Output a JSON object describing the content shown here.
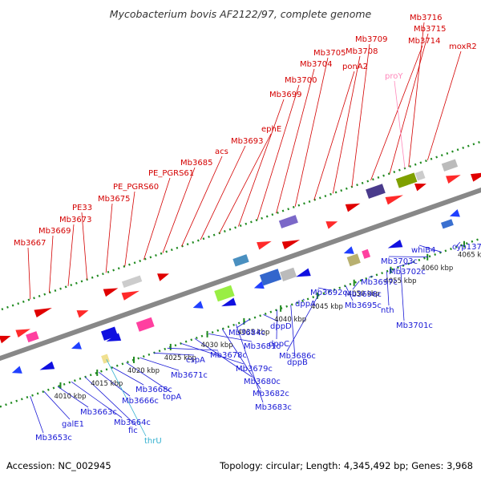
{
  "title": "Mycobacterium bovis AF2122/97, complete genome",
  "accession": "Accession: NC_002945",
  "summary": "Topology: circular; Length: 4,345,492 bp; Genes: 3,968",
  "colors": {
    "forward_label": "#d40000",
    "reverse_label": "#1a1ad6",
    "rna_label": "#33b0d0",
    "pseudo_label": "#ff88bb",
    "tick": "#1f8a1f",
    "backbone": "#888888"
  },
  "kbp_ticks": [
    "4010 kbp",
    "4015 kbp",
    "4020 kbp",
    "4025 kbp",
    "4030 kbp",
    "4035 kbp",
    "4040 kbp",
    "4045 kbp",
    "4050 kbp",
    "4055 kbp",
    "4060 kbp",
    "4065 kbp"
  ],
  "forward_labels": [
    "Mb3667",
    "Mb3669",
    "Mb3673",
    "PE33",
    "Mb3675",
    "PE_PGRS60",
    "PE_PGRS61",
    "Mb3685",
    "acs",
    "Mb3693",
    "ephE",
    "Mb3699",
    "Mb3700",
    "Mb3704",
    "Mb3705",
    "ponA2",
    "Mb3708",
    "Mb3709",
    "Mb3714",
    "Mb3715",
    "Mb3716",
    "moxR2"
  ],
  "pseudo_labels": [
    "proY"
  ],
  "reverse_labels": [
    "Mb3653c",
    "galE1",
    "Mb3663c",
    "Mb3664c",
    "fic",
    "Mb3666c",
    "Mb3668c",
    "topA",
    "Mb3671c",
    "cspA",
    "Mb3678c",
    "Mb3679c",
    "Mb3680c",
    "Mb3681c",
    "Mb3682c",
    "Mb3683c",
    "Mb3684c",
    "dppD",
    "dppC",
    "dppB",
    "dppA",
    "Mb3686c",
    "Mb3692c",
    "Mb3695c",
    "Mb3696c",
    "Mb3697c",
    "nth",
    "Mb3701c",
    "Mb3702c",
    "Mb3703c",
    "whiB4",
    "cyp137"
  ],
  "rna_labels": [
    "thrU"
  ]
}
